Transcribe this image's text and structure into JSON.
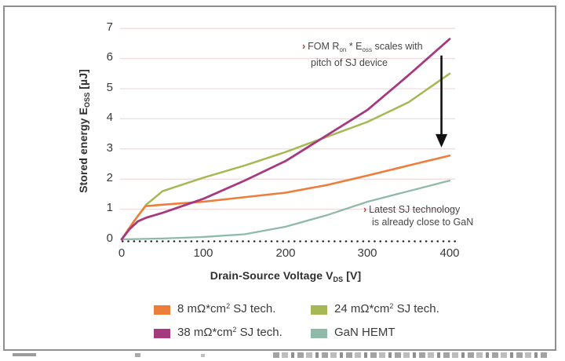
{
  "frame": {
    "border_color": "#8e8e8e"
  },
  "chart_data": {
    "type": "line",
    "title": "",
    "xlabel": "Drain-Source Voltage V_DS [V]",
    "ylabel": "Stored energy E_OSS [uJ]",
    "xlim": [
      0,
      420
    ],
    "ylim": [
      -0.2,
      7.3
    ],
    "x_ticks": [
      0,
      100,
      200,
      300,
      400
    ],
    "y_ticks": [
      0,
      1,
      2,
      3,
      4,
      5,
      6,
      7
    ],
    "grid": "horizontal-only",
    "gridline_color": "#f0dcdc",
    "zero_baseline_style": "black-dotted",
    "legend_position": "bottom",
    "series": [
      {
        "name": "8 mΩ*cm² SJ tech.",
        "color": "#ED7D3B",
        "width": 2.6,
        "points": [
          [
            0,
            0
          ],
          [
            15,
            0.6
          ],
          [
            29,
            1.1
          ],
          [
            50,
            1.15
          ],
          [
            100,
            1.25
          ],
          [
            150,
            1.4
          ],
          [
            200,
            1.55
          ],
          [
            250,
            1.8
          ],
          [
            300,
            2.12
          ],
          [
            350,
            2.45
          ],
          [
            400,
            2.78
          ]
        ]
      },
      {
        "name": "38 mΩ*cm² SJ tech.",
        "color": "#A63A7F",
        "width": 2.8,
        "points": [
          [
            0,
            0
          ],
          [
            10,
            0.35
          ],
          [
            20,
            0.6
          ],
          [
            30,
            0.72
          ],
          [
            50,
            0.88
          ],
          [
            100,
            1.35
          ],
          [
            150,
            1.95
          ],
          [
            200,
            2.6
          ],
          [
            250,
            3.45
          ],
          [
            300,
            4.3
          ],
          [
            350,
            5.45
          ],
          [
            400,
            6.65
          ]
        ]
      },
      {
        "name": "24 mΩ*cm² SJ tech.",
        "color": "#A6B854",
        "width": 2.5,
        "points": [
          [
            0,
            0
          ],
          [
            15,
            0.6
          ],
          [
            30,
            1.15
          ],
          [
            50,
            1.6
          ],
          [
            100,
            2.05
          ],
          [
            150,
            2.45
          ],
          [
            200,
            2.9
          ],
          [
            250,
            3.4
          ],
          [
            300,
            3.9
          ],
          [
            350,
            4.55
          ],
          [
            400,
            5.5
          ]
        ]
      },
      {
        "name": "GaN HEMT",
        "color": "#8FB9A9",
        "width": 2.3,
        "points": [
          [
            0,
            0
          ],
          [
            50,
            0.03
          ],
          [
            100,
            0.08
          ],
          [
            150,
            0.17
          ],
          [
            200,
            0.42
          ],
          [
            250,
            0.8
          ],
          [
            300,
            1.25
          ],
          [
            350,
            1.6
          ],
          [
            400,
            1.95
          ]
        ]
      }
    ],
    "arrow": {
      "x_v": 390,
      "from_e": 6.1,
      "to_e": 3.05,
      "direction": "down",
      "color": "#111111"
    },
    "annotations": [
      "FOM Ron * Eoss scales with pitch of SJ device",
      "Latest SJ technology is already close to GaN"
    ]
  },
  "axes": {
    "y_ticks": [
      "7",
      "6",
      "5",
      "4",
      "3",
      "2",
      "1",
      "0"
    ],
    "x_ticks": [
      "0",
      "100",
      "200",
      "300",
      "400"
    ],
    "ylabel": {
      "pre": "Stored energy E",
      "sub": "OSS",
      "post": " [µJ]"
    },
    "xlabel": {
      "pre": "Drain-Source Voltage V",
      "sub": "DS",
      "post": " [V]"
    }
  },
  "annotation1": {
    "bullet": "›",
    "l1_pre": "FOM R",
    "l1_sub1": "on",
    "l1_mid": " * E",
    "l1_sub2": "oss",
    "l1_post": " scales with",
    "l2": "pitch of SJ device"
  },
  "annotation2": {
    "bullet": "›",
    "l1": "Latest SJ technology",
    "l2": "is already close to GaN"
  },
  "legend": {
    "items": [
      {
        "pre": "8 mΩ*cm",
        "sup": "2",
        "post": " SJ tech.",
        "color": "#ED7D3B"
      },
      {
        "pre": "38 mΩ*cm",
        "sup": "2",
        "post": " SJ tech.",
        "color": "#A63A7F"
      },
      {
        "pre": "24 mΩ*cm",
        "sup": "2",
        "post": " SJ tech.",
        "color": "#A6B854"
      },
      {
        "pre": "GaN HEMT",
        "sup": "",
        "post": "",
        "color": "#8FB9A9"
      }
    ]
  }
}
